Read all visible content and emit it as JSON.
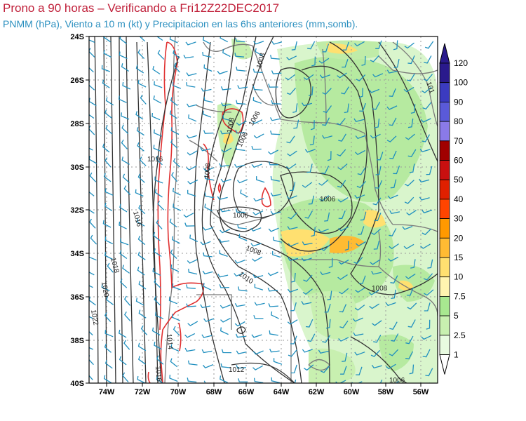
{
  "header": {
    "title": "Prono a 90 horas – Verificando a Fri12Z22DEC2017",
    "subtitle": "PNMM (hPa), Viento a 10 m (kt) y Precipitacion en las 6hs anteriores (mm,somb)."
  },
  "colors": {
    "title": "#c0203a",
    "subtitle": "#2a8fbf",
    "isobar": "#333333",
    "barb": "#1f8fbf",
    "terrain_contour": "#e03030",
    "border": "#7a7a7a",
    "grid": "#9a9a9a"
  },
  "axes": {
    "lat_labels": [
      "24S",
      "26S",
      "28S",
      "30S",
      "32S",
      "34S",
      "36S",
      "38S",
      "40S"
    ],
    "lon_labels": [
      "74W",
      "72W",
      "70W",
      "68W",
      "66W",
      "64W",
      "62W",
      "60W",
      "58W",
      "56W"
    ]
  },
  "colorbar": {
    "labels": [
      "120",
      "100",
      "90",
      "80",
      "70",
      "60",
      "50",
      "40",
      "30",
      "20",
      "15",
      "10",
      "7.5",
      "5",
      "2.5",
      "1"
    ],
    "colors": [
      "#2a1a8c",
      "#3b3bc0",
      "#5a5ad8",
      "#8a7ae8",
      "#a00000",
      "#c81010",
      "#e02000",
      "#ff4400",
      "#ff9900",
      "#ffbb33",
      "#ffe070",
      "#fff4b0",
      "#a8e890",
      "#c8f0b0",
      "#e8fbe0"
    ]
  },
  "contour_labels": [
    {
      "text": "1008"
    },
    {
      "text": "1008"
    },
    {
      "text": "1006"
    },
    {
      "text": "1006"
    },
    {
      "text": "1008"
    },
    {
      "text": "1006"
    },
    {
      "text": "1006"
    },
    {
      "text": "1010"
    },
    {
      "text": "1008"
    },
    {
      "text": "1016"
    },
    {
      "text": "1016"
    },
    {
      "text": "1018"
    },
    {
      "text": "1020"
    },
    {
      "text": "1022"
    },
    {
      "text": "1014"
    },
    {
      "text": "1016"
    },
    {
      "text": "1012"
    },
    {
      "text": "1006"
    },
    {
      "text": "1008"
    },
    {
      "text": "101"
    }
  ]
}
